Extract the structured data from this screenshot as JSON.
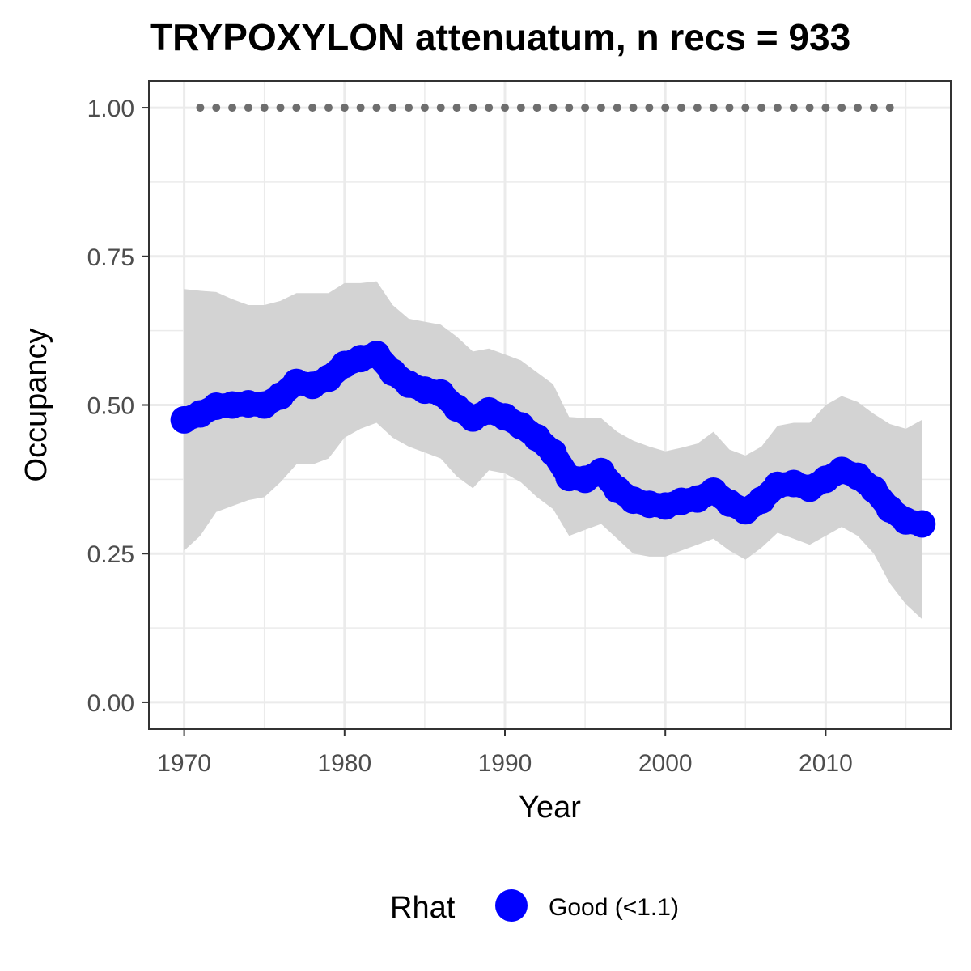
{
  "chart_data": {
    "type": "line",
    "title": "TRYPOXYLON attenuatum, n recs = 933",
    "xlabel": "Year",
    "ylabel": "Occupancy",
    "xlim": [
      1967.8,
      2017.8
    ],
    "ylim": [
      -0.045,
      1.045
    ],
    "x_ticks": [
      1970,
      1980,
      1990,
      2000,
      2010
    ],
    "x_tick_labels": [
      "1970",
      "1980",
      "1990",
      "2000",
      "2010"
    ],
    "y_ticks": [
      0,
      0.25,
      0.5,
      0.75,
      1.0
    ],
    "y_tick_labels": [
      "0.00",
      "0.25",
      "0.50",
      "0.75",
      "1.00"
    ],
    "grid": true,
    "legend": {
      "title": "Rhat",
      "position": "bottom",
      "entries": [
        {
          "label": "Good (<1.1)",
          "color": "#0000ff"
        }
      ]
    },
    "colors": {
      "series": "#0000ff",
      "ribbon": "#d3d3d3",
      "reference_points": "#6e6e6e"
    },
    "x": [
      1970,
      1971,
      1972,
      1973,
      1974,
      1975,
      1976,
      1977,
      1978,
      1979,
      1980,
      1981,
      1982,
      1983,
      1984,
      1985,
      1986,
      1987,
      1988,
      1989,
      1990,
      1991,
      1992,
      1993,
      1994,
      1995,
      1996,
      1997,
      1998,
      1999,
      2000,
      2001,
      2002,
      2003,
      2004,
      2005,
      2006,
      2007,
      2008,
      2009,
      2010,
      2011,
      2012,
      2013,
      2014,
      2015,
      2016
    ],
    "series": [
      {
        "values": [
          0.475,
          0.485,
          0.498,
          0.5,
          0.502,
          0.5,
          0.515,
          0.538,
          0.533,
          0.545,
          0.568,
          0.578,
          0.585,
          0.555,
          0.535,
          0.525,
          0.52,
          0.495,
          0.478,
          0.49,
          0.48,
          0.465,
          0.445,
          0.42,
          0.378,
          0.375,
          0.388,
          0.358,
          0.34,
          0.333,
          0.33,
          0.338,
          0.342,
          0.355,
          0.335,
          0.322,
          0.34,
          0.365,
          0.368,
          0.36,
          0.375,
          0.39,
          0.38,
          0.358,
          0.325,
          0.305,
          0.3
        ],
        "lower": [
          0.255,
          0.28,
          0.32,
          0.33,
          0.34,
          0.345,
          0.37,
          0.4,
          0.4,
          0.41,
          0.445,
          0.46,
          0.47,
          0.445,
          0.43,
          0.42,
          0.41,
          0.38,
          0.36,
          0.39,
          0.385,
          0.37,
          0.345,
          0.325,
          0.28,
          0.29,
          0.3,
          0.275,
          0.25,
          0.245,
          0.245,
          0.255,
          0.265,
          0.275,
          0.255,
          0.24,
          0.26,
          0.285,
          0.275,
          0.265,
          0.28,
          0.295,
          0.28,
          0.25,
          0.2,
          0.165,
          0.14
        ],
        "upper": [
          0.695,
          0.692,
          0.69,
          0.678,
          0.668,
          0.668,
          0.675,
          0.688,
          0.688,
          0.688,
          0.705,
          0.705,
          0.708,
          0.668,
          0.645,
          0.64,
          0.635,
          0.615,
          0.59,
          0.595,
          0.585,
          0.575,
          0.555,
          0.535,
          0.48,
          0.478,
          0.478,
          0.455,
          0.44,
          0.43,
          0.422,
          0.428,
          0.435,
          0.455,
          0.425,
          0.415,
          0.43,
          0.465,
          0.47,
          0.47,
          0.5,
          0.515,
          0.505,
          0.485,
          0.468,
          0.46,
          0.475
        ]
      }
    ],
    "reference_points": {
      "x": [
        1971,
        1972,
        1973,
        1974,
        1975,
        1976,
        1977,
        1978,
        1979,
        1980,
        1981,
        1982,
        1983,
        1984,
        1985,
        1986,
        1987,
        1988,
        1989,
        1990,
        1991,
        1992,
        1993,
        1994,
        1995,
        1996,
        1997,
        1998,
        1999,
        2000,
        2001,
        2002,
        2003,
        2004,
        2005,
        2006,
        2007,
        2008,
        2009,
        2010,
        2011,
        2012,
        2013,
        2014
      ],
      "y": 1.0
    }
  }
}
